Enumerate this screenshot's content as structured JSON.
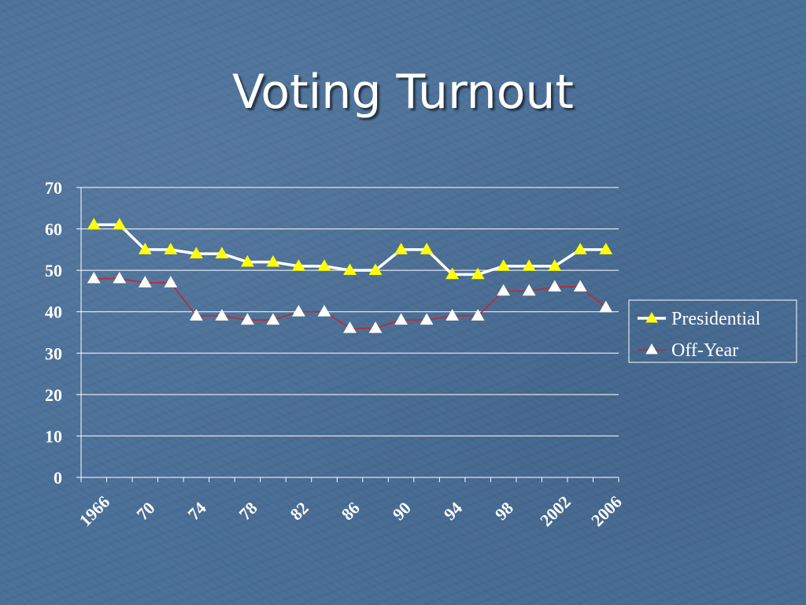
{
  "slide": {
    "title": "Voting Turnout"
  },
  "chart_data": {
    "type": "line",
    "title": "",
    "xlabel": "",
    "ylabel": "",
    "ylim": [
      0,
      70
    ],
    "yticks": [
      0,
      10,
      20,
      30,
      40,
      50,
      60,
      70
    ],
    "grid": true,
    "legend_position": "right",
    "x_tick_labels": [
      "1966",
      "70",
      "74",
      "78",
      "82",
      "86",
      "90",
      "94",
      "98",
      "2002",
      "2006"
    ],
    "series": [
      {
        "name": "Presidential",
        "line_color": "#ffffff",
        "marker_color": "#ffff00",
        "values": [
          61,
          61,
          55,
          55,
          54,
          54,
          52,
          52,
          51,
          51,
          50,
          50,
          55,
          55,
          49,
          49,
          51,
          51,
          51,
          55,
          55
        ]
      },
      {
        "name": "Off-Year",
        "line_color": "#c0282d",
        "marker_color": "#ffffff",
        "values": [
          48,
          48,
          47,
          47,
          39,
          39,
          38,
          38,
          40,
          40,
          36,
          36,
          38,
          38,
          39,
          39,
          45,
          45,
          46,
          46,
          41
        ]
      }
    ]
  }
}
